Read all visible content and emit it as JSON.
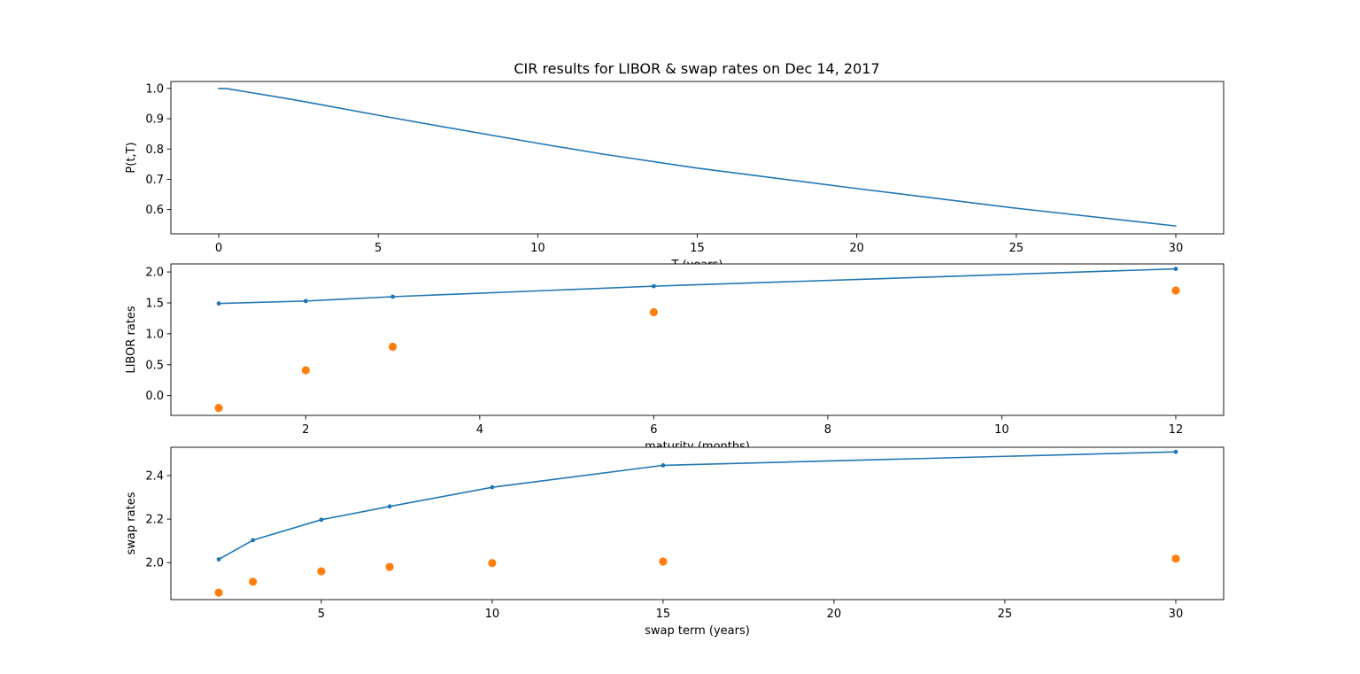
{
  "figure": {
    "title": "CIR results for LIBOR & swap rates on Dec 14, 2017"
  },
  "colors": {
    "model": "#1f77b4",
    "market": "#ff7f0e",
    "axes": "#000000",
    "background": "#ffffff"
  },
  "chart_data": [
    {
      "type": "line",
      "xlabel": "T (years)",
      "ylabel": "P(t,T)",
      "xlim": [
        -1.5,
        31.5
      ],
      "ylim": [
        0.52,
        1.023
      ],
      "xticks": [
        0,
        5,
        10,
        15,
        20,
        25,
        30
      ],
      "yticks": [
        0.6,
        0.7,
        0.8,
        0.9,
        1.0
      ],
      "ytick_decimals": 1,
      "grid": false,
      "series": [
        {
          "style": "line",
          "color": "#1f77b4",
          "x": [
            0,
            0.25,
            1,
            2,
            3,
            5,
            7,
            10,
            12,
            15,
            20,
            25,
            30
          ],
          "y": [
            1.0,
            0.9995,
            0.9865,
            0.969,
            0.9505,
            0.9115,
            0.874,
            0.819,
            0.784,
            0.737,
            0.6695,
            0.6045,
            0.546
          ]
        }
      ]
    },
    {
      "type": "line",
      "xlabel": "maturity (months)",
      "ylabel": "LIBOR rates",
      "xlim": [
        0.45,
        12.55
      ],
      "ylim": [
        -0.32,
        2.13
      ],
      "xticks": [
        2,
        4,
        6,
        8,
        10,
        12
      ],
      "yticks": [
        0.0,
        0.5,
        1.0,
        1.5,
        2.0
      ],
      "ytick_decimals": 1,
      "grid": false,
      "series": [
        {
          "style": "line-markers",
          "color": "#1f77b4",
          "x": [
            1,
            2,
            3,
            6,
            12
          ],
          "y": [
            1.49,
            1.53,
            1.6,
            1.77,
            2.05
          ]
        },
        {
          "style": "markers",
          "color": "#ff7f0e",
          "x": [
            1,
            2,
            3,
            6,
            12
          ],
          "y": [
            -0.2,
            0.41,
            0.79,
            1.35,
            1.7
          ]
        }
      ]
    },
    {
      "type": "line",
      "xlabel": "swap term (years)",
      "ylabel": "swap rates",
      "xlim": [
        0.6,
        31.4
      ],
      "ylim": [
        1.83,
        2.53
      ],
      "xticks": [
        5,
        10,
        15,
        20,
        25,
        30
      ],
      "yticks": [
        2.0,
        2.2,
        2.4
      ],
      "ytick_decimals": 1,
      "grid": false,
      "series": [
        {
          "style": "line-markers",
          "color": "#1f77b4",
          "x": [
            2,
            3,
            5,
            7,
            10,
            15,
            30
          ],
          "y": [
            2.015,
            2.103,
            2.197,
            2.258,
            2.346,
            2.447,
            2.509
          ]
        },
        {
          "style": "markers",
          "color": "#ff7f0e",
          "x": [
            2,
            3,
            5,
            7,
            10,
            15,
            30
          ],
          "y": [
            1.862,
            1.912,
            1.96,
            1.98,
            1.998,
            2.005,
            2.018
          ]
        }
      ]
    }
  ]
}
